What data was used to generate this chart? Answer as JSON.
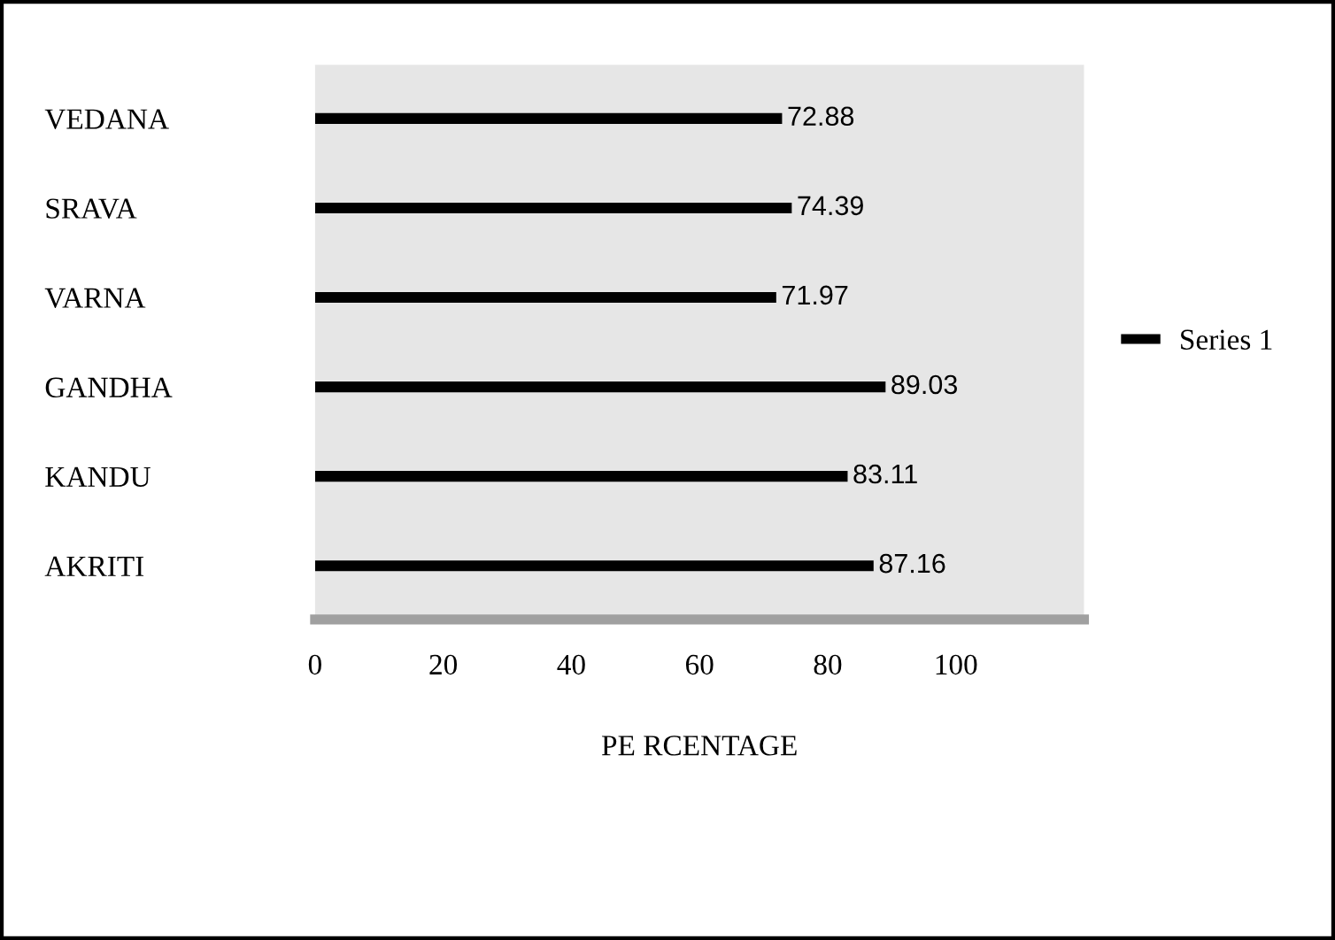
{
  "chart_data": {
    "type": "bar",
    "orientation": "horizontal",
    "categories": [
      "VEDANA",
      "SRAVA",
      "VARNA",
      "GANDHA",
      "KANDU",
      "AKRITI"
    ],
    "series": [
      {
        "name": "Series 1",
        "color": "#000000",
        "values": [
          72.88,
          74.39,
          71.97,
          89.03,
          83.11,
          87.16
        ]
      }
    ],
    "xlim": [
      0,
      120
    ],
    "xticks": [
      0,
      20,
      40,
      60,
      80,
      100
    ],
    "xlabel": "PE RCENTAGE",
    "data_labels": true,
    "legend": "right",
    "grid": false
  }
}
